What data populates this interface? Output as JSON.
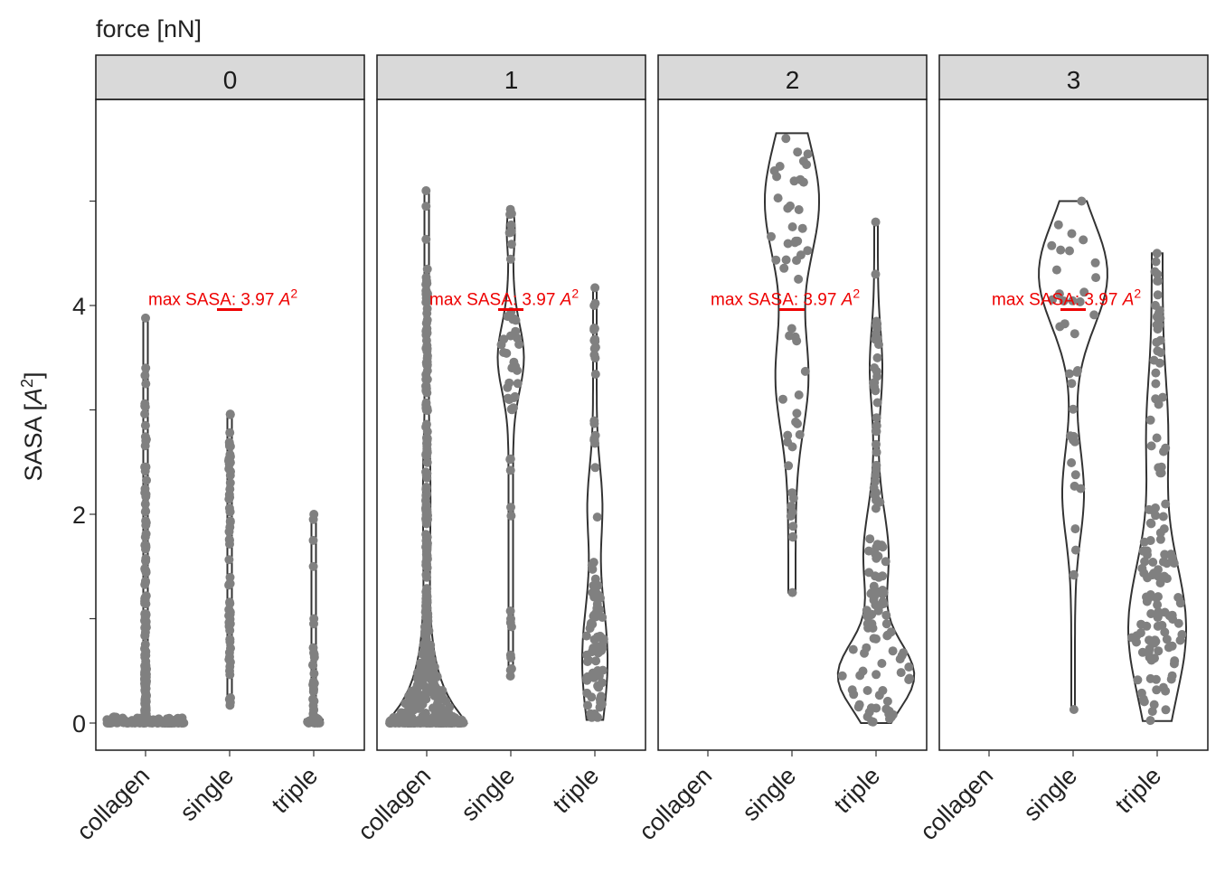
{
  "chart_data": {
    "type": "violin",
    "title": "force [nN]",
    "ylabel": "SASA [A^2]",
    "ylabel_parts": {
      "main": "SASA [",
      "symbol": "A",
      "power": "2",
      "close": "]"
    },
    "xlabel": "",
    "ylim": [
      -0.2,
      5.65
    ],
    "yticks": [
      0,
      2,
      4
    ],
    "yminor": [
      1,
      3,
      5
    ],
    "categories": [
      "collagen",
      "single",
      "triple"
    ],
    "facet_title": "force [nN]",
    "facets": [
      "0",
      "1",
      "2",
      "3"
    ],
    "annotation": {
      "text": "max SASA: 3.97 ",
      "symbol": "A",
      "power": "2",
      "value": 3.97,
      "category": "single",
      "color": "#ee0000"
    },
    "point_color": "#808080",
    "panels": [
      {
        "facet": "0",
        "groups": [
          {
            "category": "collagen",
            "min": 0.0,
            "max": 3.88,
            "present": true
          },
          {
            "category": "single",
            "min": 0.17,
            "max": 2.96,
            "present": true
          },
          {
            "category": "triple",
            "min": 0.0,
            "max": 2.0,
            "present": true
          }
        ]
      },
      {
        "facet": "1",
        "groups": [
          {
            "category": "collagen",
            "min": 0.0,
            "max": 5.1,
            "present": true
          },
          {
            "category": "single",
            "min": 0.45,
            "max": 4.92,
            "present": true
          },
          {
            "category": "triple",
            "min": 0.03,
            "max": 4.17,
            "present": true
          }
        ]
      },
      {
        "facet": "2",
        "groups": [
          {
            "category": "collagen",
            "present": false
          },
          {
            "category": "single",
            "min": 1.25,
            "max": 5.65,
            "present": true
          },
          {
            "category": "triple",
            "min": 0.0,
            "max": 4.8,
            "present": true
          }
        ]
      },
      {
        "facet": "3",
        "groups": [
          {
            "category": "collagen",
            "present": false
          },
          {
            "category": "single",
            "min": 0.13,
            "max": 5.0,
            "present": true
          },
          {
            "category": "triple",
            "min": 0.02,
            "max": 4.5,
            "present": true
          }
        ]
      }
    ]
  }
}
